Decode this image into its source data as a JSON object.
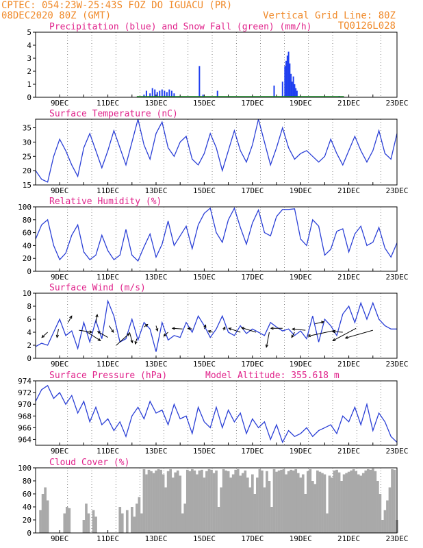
{
  "header": {
    "line1": "CPTEC:  054:23W-25:43S  FOZ DO IGUACU (PR)",
    "line2_left": "08DEC2020 80Z (GMT)",
    "line2_right": "Vertical Grid Line: 80Z",
    "line3_right": "TQ0126L028"
  },
  "colors": {
    "header": "#f08a2a",
    "title": "#e0218a",
    "line": "#2a3fd6",
    "precip": "#1f3ff0",
    "snow": "#1c9a2c",
    "cloud": "#a9a9a9",
    "arrow": "#000000"
  },
  "chart_data": [
    {
      "id": "precip",
      "type": "bar",
      "title": "Precipitation (blue) and Snow Fall (green) (mm/h)",
      "ylim": [
        0,
        5
      ],
      "yticks": [
        "5",
        "4",
        "3",
        "2",
        "1",
        "0"
      ],
      "x_domain_days": [
        8,
        23
      ],
      "xticks": [
        "9DEC",
        "11DEC",
        "13DEC",
        "15DEC",
        "17DEC",
        "19DEC",
        "21DEC",
        "23DEC"
      ],
      "series": [
        {
          "name": "Precipitation",
          "x": [
            12.5,
            12.6,
            12.75,
            12.85,
            12.95,
            13.05,
            13.15,
            13.25,
            13.35,
            13.45,
            13.55,
            13.65,
            13.75,
            14.8,
            14.95,
            15.55,
            17.9,
            18.25,
            18.35,
            18.4,
            18.45,
            18.5,
            18.55,
            18.6,
            18.65,
            18.7,
            18.75,
            18.8,
            18.85,
            20.6
          ],
          "values": [
            0.2,
            0.5,
            0.3,
            0.7,
            0.6,
            0.4,
            0.5,
            0.6,
            0.5,
            0.4,
            0.6,
            0.5,
            0.3,
            2.4,
            0.2,
            0.5,
            0.9,
            1.2,
            2.4,
            2.8,
            3.2,
            3.5,
            2.6,
            1.8,
            1.2,
            1.6,
            1.0,
            0.7,
            0.5,
            0.1
          ]
        },
        {
          "name": "Snow Fall",
          "x": [
            12.2,
            20.8
          ],
          "values": [
            0.0,
            0.0
          ]
        }
      ]
    },
    {
      "id": "temp",
      "type": "line",
      "title": "Surface Temperature (nC)",
      "ylim": [
        15,
        38
      ],
      "yticks": [
        "35",
        "30",
        "25",
        "20",
        "15"
      ],
      "x_domain_days": [
        8,
        23
      ],
      "xticks": [
        "9DEC",
        "11DEC",
        "13DEC",
        "15DEC",
        "17DEC",
        "19DEC",
        "21DEC",
        "23DEC"
      ],
      "x": [
        8.0,
        8.25,
        8.5,
        8.75,
        9.0,
        9.25,
        9.5,
        9.75,
        10.0,
        10.25,
        10.5,
        10.75,
        11.0,
        11.25,
        11.5,
        11.75,
        12.0,
        12.25,
        12.5,
        12.75,
        13.0,
        13.25,
        13.5,
        13.75,
        14.0,
        14.25,
        14.5,
        14.75,
        15.0,
        15.25,
        15.5,
        15.75,
        16.0,
        16.25,
        16.5,
        16.75,
        17.0,
        17.25,
        17.5,
        17.75,
        18.0,
        18.25,
        18.5,
        18.75,
        19.0,
        19.25,
        19.5,
        19.75,
        20.0,
        20.25,
        20.5,
        20.75,
        21.0,
        21.25,
        21.5,
        21.75,
        22.0,
        22.25,
        22.5,
        22.75,
        23.0
      ],
      "values": [
        20,
        17,
        16,
        25,
        31,
        27,
        22,
        18,
        28,
        33,
        27,
        21,
        27,
        34,
        28,
        22,
        30,
        38,
        29,
        24,
        33,
        37,
        28,
        25,
        30,
        32,
        24,
        22,
        26,
        33,
        28,
        20,
        27,
        34,
        27,
        23,
        29,
        38,
        30,
        22,
        28,
        35,
        28,
        24,
        26,
        27,
        25,
        23,
        25,
        31,
        26,
        22,
        27,
        32,
        27,
        23,
        27,
        34,
        26,
        24,
        33
      ]
    },
    {
      "id": "rh",
      "type": "line",
      "title": "Relative Humidity (%)",
      "ylim": [
        0,
        100
      ],
      "yticks": [
        "100",
        "80",
        "60",
        "40",
        "20",
        "0"
      ],
      "x_domain_days": [
        8,
        23
      ],
      "xticks": [
        "9DEC",
        "11DEC",
        "13DEC",
        "15DEC",
        "17DEC",
        "19DEC",
        "21DEC",
        "23DEC"
      ],
      "x": [
        8.0,
        8.25,
        8.5,
        8.75,
        9.0,
        9.25,
        9.5,
        9.75,
        10.0,
        10.25,
        10.5,
        10.75,
        11.0,
        11.25,
        11.5,
        11.75,
        12.0,
        12.25,
        12.5,
        12.75,
        13.0,
        13.25,
        13.5,
        13.75,
        14.0,
        14.25,
        14.5,
        14.75,
        15.0,
        15.25,
        15.5,
        15.75,
        16.0,
        16.25,
        16.5,
        16.75,
        17.0,
        17.25,
        17.5,
        17.75,
        18.0,
        18.25,
        18.5,
        18.75,
        19.0,
        19.25,
        19.5,
        19.75,
        20.0,
        20.25,
        20.5,
        20.75,
        21.0,
        21.25,
        21.5,
        21.75,
        22.0,
        22.25,
        22.5,
        22.75,
        23.0
      ],
      "values": [
        50,
        72,
        80,
        40,
        18,
        28,
        56,
        72,
        30,
        18,
        25,
        56,
        32,
        18,
        25,
        65,
        25,
        16,
        38,
        58,
        22,
        42,
        78,
        40,
        55,
        70,
        35,
        72,
        90,
        98,
        60,
        45,
        80,
        98,
        68,
        42,
        75,
        95,
        60,
        55,
        85,
        96,
        96,
        97,
        50,
        40,
        80,
        70,
        25,
        34,
        62,
        66,
        30,
        58,
        70,
        40,
        45,
        68,
        36,
        22,
        44
      ]
    },
    {
      "id": "wind",
      "type": "line",
      "title": "Surface Wind (m/s)",
      "ylim": [
        0,
        10
      ],
      "yticks": [
        "10",
        "8",
        "6",
        "4",
        "2",
        "0"
      ],
      "x_domain_days": [
        8,
        23
      ],
      "xticks": [
        "9DEC",
        "11DEC",
        "13DEC",
        "15DEC",
        "17DEC",
        "19DEC",
        "21DEC",
        "23DEC"
      ],
      "x": [
        8.0,
        8.25,
        8.5,
        8.75,
        9.0,
        9.25,
        9.5,
        9.75,
        10.0,
        10.25,
        10.5,
        10.75,
        11.0,
        11.25,
        11.5,
        11.75,
        12.0,
        12.25,
        12.5,
        12.75,
        13.0,
        13.25,
        13.5,
        13.75,
        14.0,
        14.25,
        14.5,
        14.75,
        15.0,
        15.25,
        15.5,
        15.75,
        16.0,
        16.25,
        16.5,
        16.75,
        17.0,
        17.25,
        17.5,
        17.75,
        18.0,
        18.25,
        18.5,
        18.75,
        19.0,
        19.25,
        19.5,
        19.75,
        20.0,
        20.25,
        20.5,
        20.75,
        21.0,
        21.25,
        21.5,
        21.75,
        22.0,
        22.25,
        22.5,
        22.75,
        23.0
      ],
      "values": [
        1.8,
        2.3,
        2.0,
        4.0,
        6.0,
        3.5,
        4.2,
        1.5,
        5.5,
        2.5,
        5.8,
        3.0,
        8.8,
        6.5,
        2.5,
        3.0,
        6.0,
        2.8,
        5.5,
        4.5,
        1.0,
        5.5,
        2.8,
        3.5,
        3.2,
        5.5,
        4.0,
        6.5,
        5.0,
        3.2,
        4.5,
        6.5,
        4.0,
        3.5,
        5.0,
        3.8,
        4.5,
        4.0,
        3.5,
        5.5,
        4.8,
        4.2,
        4.5,
        3.5,
        4.2,
        3.0,
        6.5,
        2.5,
        6.0,
        5.0,
        3.5,
        6.8,
        8.0,
        5.5,
        8.5,
        6.0,
        8.5,
        6.0,
        5.0,
        4.5,
        4.5
      ],
      "arrows": [
        {
          "x": 8.5,
          "y": 4,
          "dx": -0.4,
          "dy": -0.8
        },
        {
          "x": 8.95,
          "y": 4.5,
          "dx": -0.1,
          "dy": -1.3
        },
        {
          "x": 9.35,
          "y": 5.5,
          "dx": 0.25,
          "dy": 1.0
        },
        {
          "x": 9.8,
          "y": 4.3,
          "dx": 0.9,
          "dy": -0.3
        },
        {
          "x": 10.15,
          "y": 4.0,
          "dx": 0.9,
          "dy": -1.3
        },
        {
          "x": 10.5,
          "y": 5.5,
          "dx": 0.1,
          "dy": 1.2
        },
        {
          "x": 11.05,
          "y": 5.0,
          "dx": 0.3,
          "dy": -1.0
        },
        {
          "x": 11.0,
          "y": 3.2,
          "dx": -0.7,
          "dy": 0.9
        },
        {
          "x": 11.35,
          "y": 2.0,
          "dx": 0.9,
          "dy": 1.8
        },
        {
          "x": 11.9,
          "y": 4.0,
          "dx": 0.2,
          "dy": -1.6
        },
        {
          "x": 12.2,
          "y": 3.0,
          "dx": -0.1,
          "dy": -0.8
        },
        {
          "x": 12.5,
          "y": 4.8,
          "dx": 0.25,
          "dy": 0.4
        },
        {
          "x": 13.0,
          "y": 5.0,
          "dx": 0.1,
          "dy": -0.8
        },
        {
          "x": 13.5,
          "y": 4.0,
          "dx": -0.3,
          "dy": -0.6
        },
        {
          "x": 14.1,
          "y": 4.5,
          "dx": -0.7,
          "dy": 0.1
        },
        {
          "x": 14.5,
          "y": 4.5,
          "dx": -0.3,
          "dy": 0.1
        },
        {
          "x": 15.0,
          "y": 4.5,
          "dx": 0.1,
          "dy": 0.6
        },
        {
          "x": 15.35,
          "y": 4.0,
          "dx": -0.3,
          "dy": 0.2
        },
        {
          "x": 15.8,
          "y": 4.3,
          "dx": 0.1,
          "dy": 0.5
        },
        {
          "x": 16.5,
          "y": 4.0,
          "dx": -0.8,
          "dy": 0.6
        },
        {
          "x": 17.15,
          "y": 4.0,
          "dx": -1.0,
          "dy": 0.7
        },
        {
          "x": 17.7,
          "y": 4.0,
          "dx": -0.2,
          "dy": -2.3
        },
        {
          "x": 18.25,
          "y": 4.6,
          "dx": -0.8,
          "dy": 0.0
        },
        {
          "x": 18.75,
          "y": 4.0,
          "dx": -0.2,
          "dy": -0.8
        },
        {
          "x": 19.2,
          "y": 4.3,
          "dx": -0.9,
          "dy": 0.2
        },
        {
          "x": 19.6,
          "y": 5.3,
          "dx": 0.6,
          "dy": 0.3
        },
        {
          "x": 20.45,
          "y": 4.3,
          "dx": -1.9,
          "dy": -0.9
        },
        {
          "x": 20.75,
          "y": 4.0,
          "dx": -0.7,
          "dy": 0.1
        },
        {
          "x": 21.3,
          "y": 4.6,
          "dx": -1.6,
          "dy": -1.9
        },
        {
          "x": 22.0,
          "y": 4.3,
          "dx": -1.9,
          "dy": -1.2
        }
      ]
    },
    {
      "id": "pressure",
      "type": "line",
      "title": "Surface Pressure (hPa)",
      "title_right": "Model Altitude: 355.618  m",
      "ylim": [
        963,
        974
      ],
      "yticks": [
        "974",
        "972",
        "970",
        "968",
        "966",
        "964"
      ],
      "x_domain_days": [
        8,
        23
      ],
      "xticks": [
        "9DEC",
        "11DEC",
        "13DEC",
        "15DEC",
        "17DEC",
        "19DEC",
        "21DEC",
        "23DEC"
      ],
      "x": [
        8.0,
        8.25,
        8.5,
        8.75,
        9.0,
        9.25,
        9.5,
        9.75,
        10.0,
        10.25,
        10.5,
        10.75,
        11.0,
        11.25,
        11.5,
        11.75,
        12.0,
        12.25,
        12.5,
        12.75,
        13.0,
        13.25,
        13.5,
        13.75,
        14.0,
        14.25,
        14.5,
        14.75,
        15.0,
        15.25,
        15.5,
        15.75,
        16.0,
        16.25,
        16.5,
        16.75,
        17.0,
        17.25,
        17.5,
        17.75,
        18.0,
        18.25,
        18.5,
        18.75,
        19.0,
        19.25,
        19.5,
        19.75,
        20.0,
        20.25,
        20.5,
        20.75,
        21.0,
        21.25,
        21.5,
        21.75,
        22.0,
        22.25,
        22.5,
        22.75,
        23.0
      ],
      "values": [
        970.5,
        972.5,
        973.2,
        971.0,
        972.0,
        970.0,
        971.5,
        968.5,
        970.5,
        967.0,
        969.5,
        966.5,
        967.5,
        965.5,
        967.0,
        964.5,
        968.0,
        969.5,
        967.5,
        970.5,
        968.5,
        969.0,
        966.5,
        970.0,
        967.5,
        968.0,
        965.0,
        969.5,
        967.0,
        966.0,
        969.5,
        966.0,
        969.0,
        967.0,
        968.5,
        965.0,
        967.5,
        966.0,
        967.0,
        964.0,
        966.5,
        963.5,
        965.5,
        964.5,
        965.0,
        966.0,
        964.5,
        965.5,
        966.0,
        966.5,
        965.0,
        968.0,
        967.0,
        969.5,
        966.5,
        970.0,
        965.5,
        968.5,
        967.0,
        964.5,
        963.5
      ]
    },
    {
      "id": "cloud",
      "type": "bar",
      "title": "Cloud Cover (%)",
      "ylim": [
        0,
        100
      ],
      "yticks": [
        "100",
        "80",
        "60",
        "40",
        "20",
        "0"
      ],
      "x_domain_days": [
        8,
        23
      ],
      "xticks": [
        "9DEC",
        "11DEC",
        "13DEC",
        "15DEC",
        "17DEC",
        "19DEC",
        "21DEC",
        "23DEC"
      ],
      "x": [
        8.2,
        8.3,
        8.4,
        8.5,
        9.2,
        9.3,
        9.4,
        10.0,
        10.1,
        10.2,
        10.4,
        10.5,
        11.5,
        11.6,
        11.8,
        12.0,
        12.1,
        12.2,
        12.3,
        12.4,
        12.5,
        12.6,
        12.7,
        12.8,
        12.9,
        13.0,
        13.1,
        13.2,
        13.3,
        13.4,
        13.5,
        13.6,
        13.7,
        13.8,
        13.9,
        14.0,
        14.1,
        14.2,
        14.3,
        14.4,
        14.5,
        14.6,
        14.7,
        14.8,
        14.9,
        15.0,
        15.1,
        15.2,
        15.3,
        15.4,
        15.5,
        15.6,
        15.7,
        15.8,
        15.9,
        16.0,
        16.1,
        16.2,
        16.3,
        16.4,
        16.5,
        16.6,
        16.7,
        16.8,
        16.9,
        17.0,
        17.1,
        17.2,
        17.3,
        17.4,
        17.5,
        17.6,
        17.7,
        17.8,
        17.9,
        18.0,
        18.1,
        18.2,
        18.3,
        18.4,
        18.5,
        18.6,
        18.7,
        18.8,
        18.9,
        19.0,
        19.1,
        19.2,
        19.3,
        19.4,
        19.5,
        19.6,
        19.7,
        19.8,
        19.9,
        20.0,
        20.1,
        20.2,
        20.3,
        20.4,
        20.5,
        20.6,
        20.7,
        20.8,
        20.9,
        21.0,
        21.1,
        21.2,
        21.3,
        21.4,
        21.5,
        21.6,
        21.7,
        21.8,
        21.9,
        22.0,
        22.1,
        22.2,
        22.3,
        22.4,
        22.5,
        22.6,
        22.7,
        22.8,
        22.9,
        23.0
      ],
      "values": [
        35,
        60,
        70,
        50,
        30,
        40,
        38,
        20,
        45,
        30,
        35,
        25,
        40,
        30,
        35,
        40,
        25,
        45,
        55,
        30,
        98,
        90,
        97,
        95,
        92,
        96,
        98,
        97,
        90,
        70,
        95,
        98,
        85,
        93,
        96,
        88,
        30,
        45,
        97,
        95,
        98,
        96,
        90,
        96,
        97,
        85,
        95,
        98,
        97,
        92,
        96,
        40,
        70,
        98,
        96,
        95,
        85,
        90,
        97,
        98,
        88,
        92,
        96,
        85,
        70,
        90,
        60,
        85,
        98,
        96,
        70,
        95,
        80,
        40,
        98,
        94,
        96,
        97,
        98,
        90,
        95,
        97,
        96,
        98,
        92,
        85,
        90,
        60,
        95,
        98,
        80,
        75,
        96,
        94,
        92,
        90,
        30,
        88,
        85,
        96,
        97,
        93,
        80,
        90,
        92,
        94,
        96,
        98,
        95,
        90,
        88,
        92,
        96,
        98,
        97,
        99,
        95,
        80,
        60,
        20,
        35,
        50,
        70,
        98,
        97,
        20
      ]
    }
  ]
}
